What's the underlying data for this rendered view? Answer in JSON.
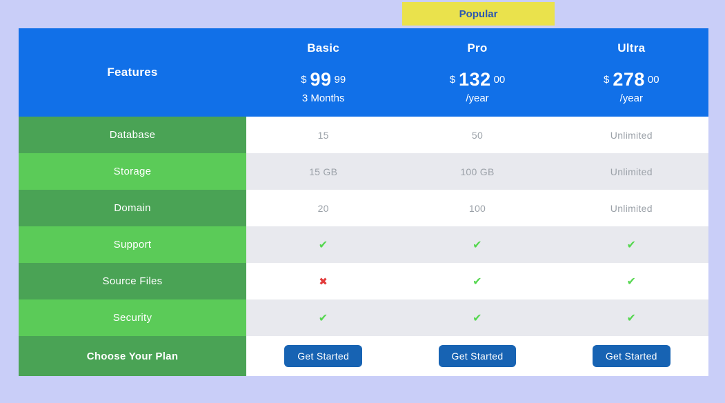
{
  "badge": {
    "label": "Popular"
  },
  "table": {
    "features_header": "Features",
    "plans": [
      {
        "name": "Basic",
        "currency": "$",
        "amount": "99",
        "cents": "99",
        "period": "3 Months"
      },
      {
        "name": "Pro",
        "currency": "$",
        "amount": "132",
        "cents": "00",
        "period": "/year"
      },
      {
        "name": "Ultra",
        "currency": "$",
        "amount": "278",
        "cents": "00",
        "period": "/year"
      }
    ],
    "rows": [
      {
        "feature": "Database",
        "cells": [
          {
            "value": "15",
            "kind": "text"
          },
          {
            "value": "50",
            "kind": "text"
          },
          {
            "value": "Unlimited",
            "kind": "text"
          }
        ]
      },
      {
        "feature": "Storage",
        "cells": [
          {
            "value": "15 GB",
            "kind": "text"
          },
          {
            "value": "100 GB",
            "kind": "text"
          },
          {
            "value": "Unlimited",
            "kind": "text"
          }
        ]
      },
      {
        "feature": "Domain",
        "cells": [
          {
            "value": "20",
            "kind": "text"
          },
          {
            "value": "100",
            "kind": "text"
          },
          {
            "value": "Unlimited",
            "kind": "text"
          }
        ]
      },
      {
        "feature": "Support",
        "cells": [
          {
            "value": "✔",
            "kind": "check"
          },
          {
            "value": "✔",
            "kind": "check"
          },
          {
            "value": "✔",
            "kind": "check"
          }
        ]
      },
      {
        "feature": "Source Files",
        "cells": [
          {
            "value": "✖",
            "kind": "cross"
          },
          {
            "value": "✔",
            "kind": "check"
          },
          {
            "value": "✔",
            "kind": "check"
          }
        ]
      },
      {
        "feature": "Security",
        "cells": [
          {
            "value": "✔",
            "kind": "check"
          },
          {
            "value": "✔",
            "kind": "check"
          },
          {
            "value": "✔",
            "kind": "check"
          }
        ]
      }
    ],
    "footer": {
      "feature": "Choose Your Plan",
      "button_label": "Get Started"
    }
  },
  "icons": {
    "check": "✔",
    "cross": "✖"
  },
  "colors": {
    "page_background": "#c9cef8",
    "header_blue": "#1170e8",
    "badge_yellow": "#eae24c",
    "badge_text_blue": "#2b57b0",
    "green_dark": "#4aa355",
    "green_light": "#5bcb58",
    "row_alt_gray": "#e8e9ee",
    "value_text_gray": "#9ba1a8",
    "check_green": "#55d74f",
    "cross_red": "#e23b3b",
    "button_blue": "#1763b3"
  }
}
